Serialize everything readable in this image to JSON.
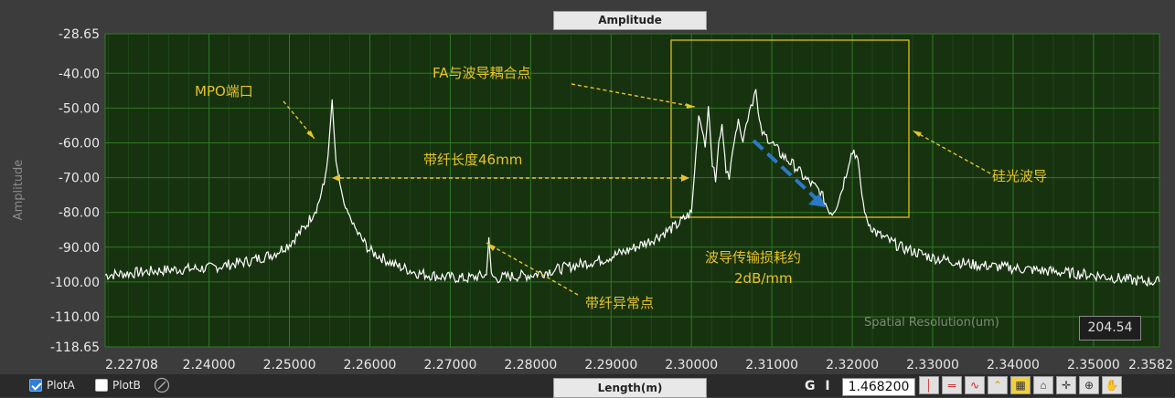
{
  "title_tab": "Amplitude",
  "xaxis_tab": "Length(m)",
  "gi_label": "G I",
  "gi_value": "1.468200",
  "spatial_resolution_label": "Spatial Resolution(um)",
  "spatial_resolution_value": "204.54",
  "legend": {
    "plotA": {
      "label": "PlotA",
      "checked": true
    },
    "plotB": {
      "label": "PlotB",
      "checked": false
    }
  },
  "toolbar_icons": [
    "cursor-legend-icon-1",
    "cursor-legend-icon-2",
    "cursor-legend-icon-3",
    "cursor-legend-icon-4",
    "cursor-legend-icon-5",
    "lock-icon",
    "crosshair-icon",
    "zoom-icon",
    "hand-pan-icon"
  ],
  "colors": {
    "plot_bg": "#17320f",
    "grid": "#2f7a26",
    "trace": "#ffffff",
    "annotation": "#e6c42a",
    "highlight": "#2b79c8"
  },
  "annotations": [
    {
      "text": "MPO端口"
    },
    {
      "text": "FA与波导耦合点"
    },
    {
      "text": "带纤长度46mm"
    },
    {
      "text": "硅光波导"
    },
    {
      "text": "带纤异常点"
    },
    {
      "text": "波导传输损耗约"
    },
    {
      "text": "2dB/mm"
    }
  ],
  "chart_data": {
    "type": "line",
    "title": "",
    "xlabel": "Length(m)",
    "ylabel": "Amplitude",
    "xlim": [
      2.22708,
      2.3582
    ],
    "ylim": [
      -118.65,
      -28.65
    ],
    "x_ticks": [
      "2.22708",
      "2.24000",
      "2.25000",
      "2.26000",
      "2.27000",
      "2.28000",
      "2.29000",
      "2.30000",
      "2.31000",
      "2.32000",
      "2.33000",
      "2.34000",
      "2.35000",
      "2.3582"
    ],
    "y_ticks": [
      "-28.65",
      "-40.00",
      "-50.00",
      "-60.00",
      "-70.00",
      "-80.00",
      "-90.00",
      "-100.00",
      "-110.00",
      "-118.65"
    ],
    "grid": true,
    "series": [
      {
        "name": "PlotA",
        "x": [
          2.22708,
          2.23,
          2.235,
          2.24,
          2.245,
          2.248,
          2.25,
          2.252,
          2.2535,
          2.2543,
          2.2548,
          2.2553,
          2.2558,
          2.2568,
          2.2585,
          2.26,
          2.263,
          2.266,
          2.269,
          2.272,
          2.2745,
          2.2748,
          2.2751,
          2.2756,
          2.277,
          2.28,
          2.283,
          2.286,
          2.289,
          2.292,
          2.295,
          2.298,
          2.3,
          2.3004,
          2.3009,
          2.3013,
          2.3017,
          2.3021,
          2.3026,
          2.303,
          2.3034,
          2.3038,
          2.3043,
          2.3047,
          2.3051,
          2.3055,
          2.306,
          2.3064,
          2.3068,
          2.3072,
          2.3076,
          2.308,
          2.3083,
          2.3086,
          2.309,
          2.3095,
          2.31,
          2.311,
          2.312,
          2.313,
          2.314,
          2.315,
          2.316,
          2.317,
          2.3175,
          2.318,
          2.3185,
          2.3192,
          2.3197,
          2.3202,
          2.3207,
          2.3212,
          2.3217,
          2.323,
          2.326,
          2.33,
          2.335,
          2.34,
          2.345,
          2.35,
          2.355,
          2.3582
        ],
        "values": [
          -98,
          -97.5,
          -96.5,
          -96,
          -94,
          -92,
          -89,
          -84,
          -78,
          -72,
          -64,
          -48,
          -66,
          -78,
          -86,
          -91,
          -95,
          -97.5,
          -98.5,
          -99,
          -98,
          -87,
          -98,
          -99,
          -98.5,
          -98,
          -96.5,
          -95,
          -93.5,
          -91,
          -88,
          -84,
          -80,
          -68,
          -52,
          -55,
          -61,
          -50,
          -66,
          -71,
          -60,
          -55,
          -67,
          -71,
          -61,
          -56,
          -54,
          -59,
          -55,
          -50,
          -48,
          -44,
          -52,
          -56,
          -58,
          -58.5,
          -60,
          -63,
          -65,
          -67,
          -70,
          -72,
          -74,
          -79,
          -80,
          -78,
          -75,
          -69,
          -64,
          -62,
          -65,
          -75,
          -82,
          -86,
          -90,
          -93,
          -95,
          -96,
          -97,
          -98,
          -99.5,
          -100
        ]
      }
    ]
  }
}
